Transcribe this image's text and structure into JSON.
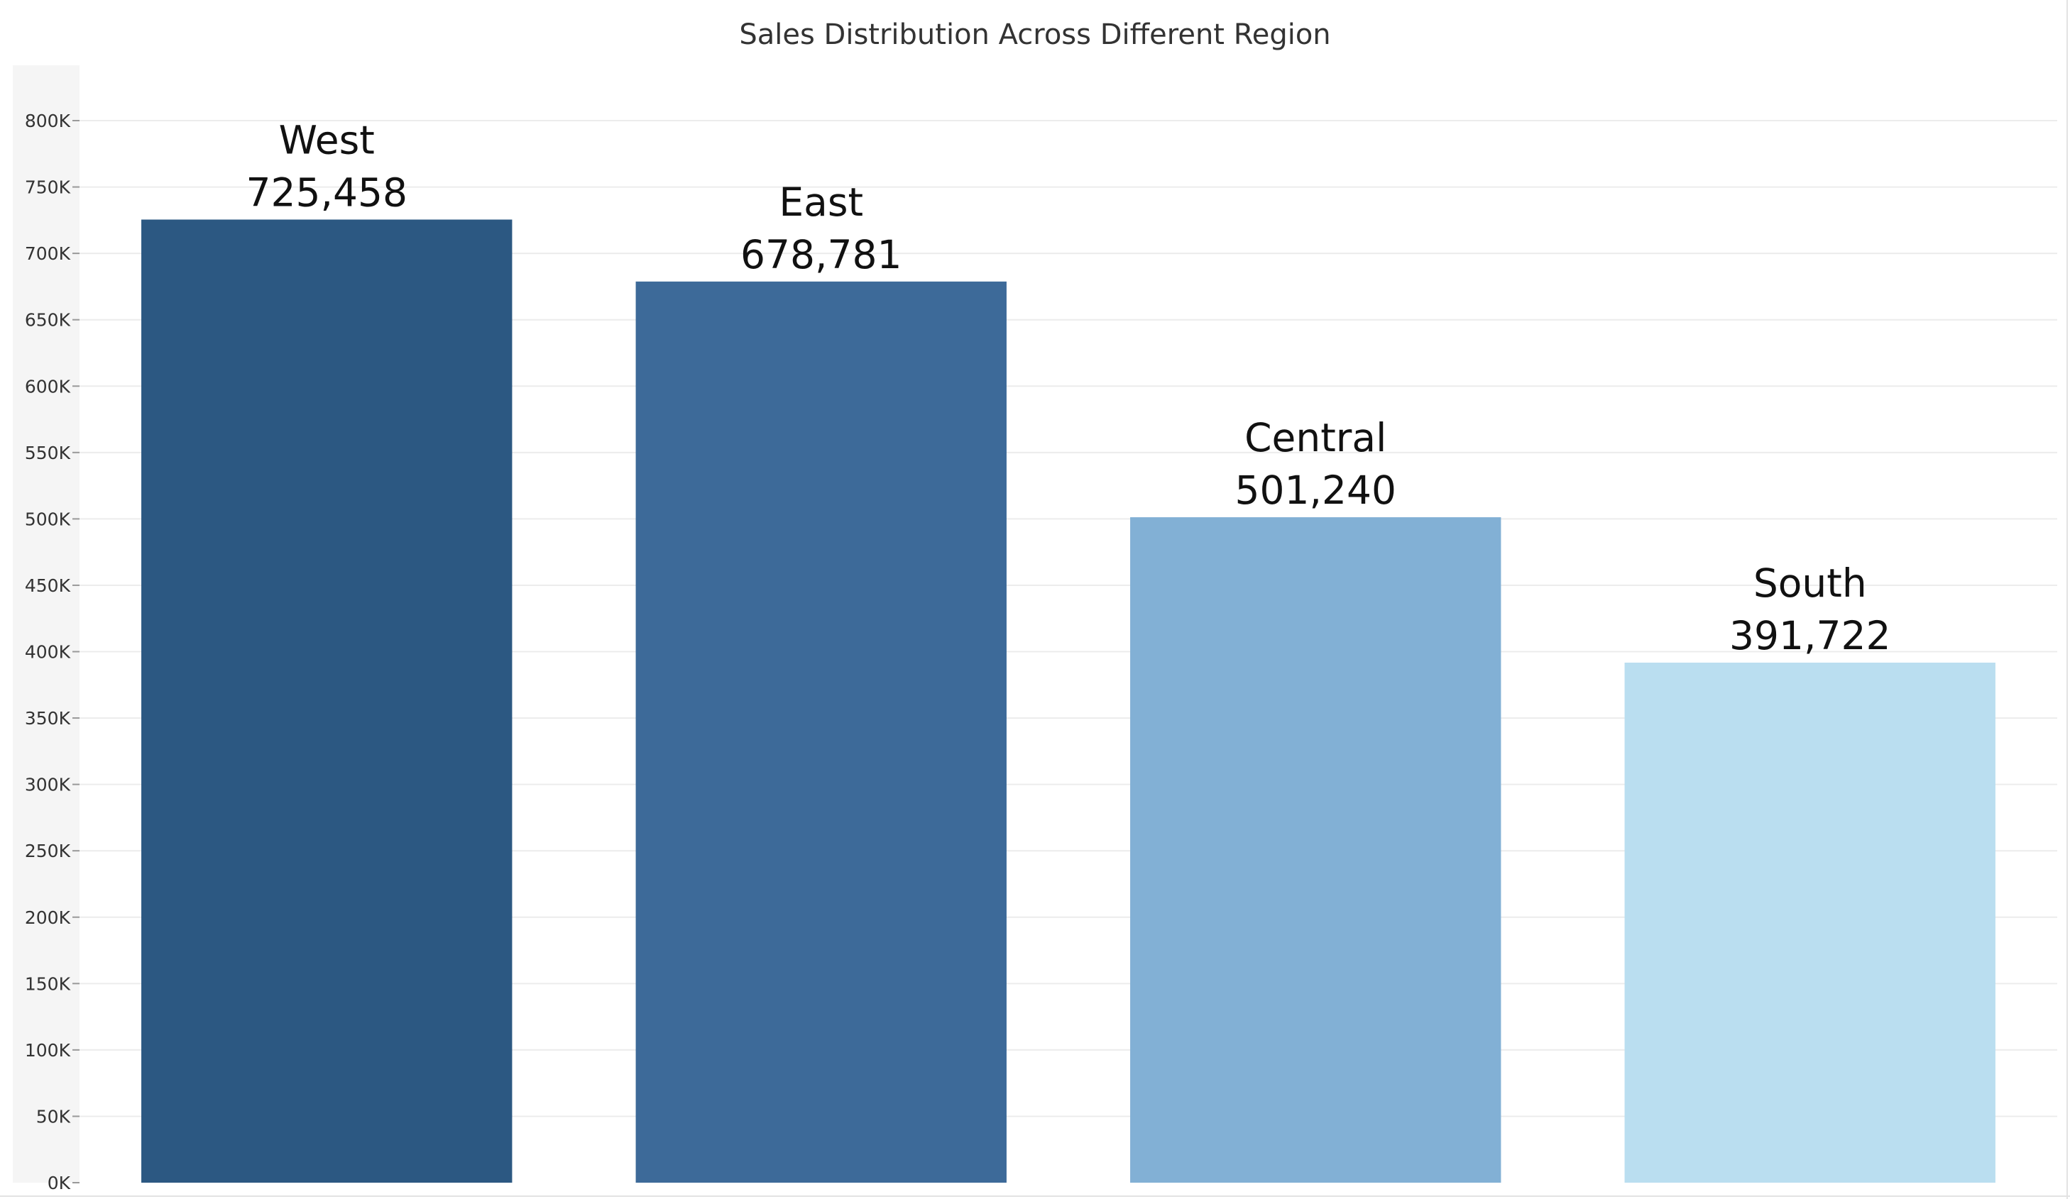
{
  "chart_data": {
    "type": "bar",
    "title": "Sales Distribution Across Different Region",
    "xlabel": "",
    "ylabel": "",
    "categories": [
      "West",
      "East",
      "Central",
      "South"
    ],
    "values": [
      725458,
      678781,
      501240,
      391722
    ],
    "value_labels": [
      "725,458",
      "678,781",
      "501,240",
      "391,722"
    ],
    "colors": [
      "#2c5882",
      "#3d6a99",
      "#82b0d5",
      "#badef0"
    ],
    "ylim": [
      0,
      800000
    ],
    "y_ticks": [
      0,
      50000,
      100000,
      150000,
      200000,
      250000,
      300000,
      350000,
      400000,
      450000,
      500000,
      550000,
      600000,
      650000,
      700000,
      750000,
      800000
    ],
    "y_tick_labels": [
      "0K",
      "50K",
      "100K",
      "150K",
      "200K",
      "250K",
      "300K",
      "350K",
      "400K",
      "450K",
      "500K",
      "550K",
      "600K",
      "650K",
      "700K",
      "750K",
      "800K"
    ],
    "grid": true,
    "legend": "none"
  }
}
